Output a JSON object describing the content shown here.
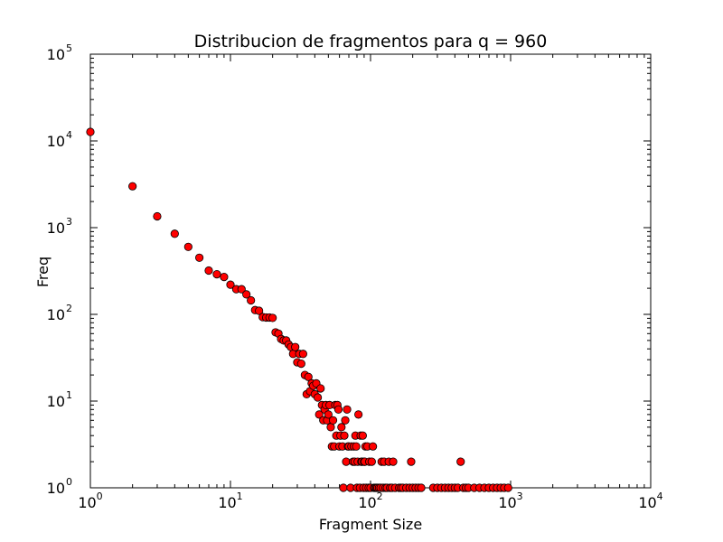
{
  "chart_data": {
    "type": "scatter",
    "title": "Distribucion de fragmentos para q = 960",
    "xlabel": "Fragment Size",
    "ylabel": "Freq",
    "xscale": "log",
    "yscale": "log",
    "xlim": [
      1,
      10000
    ],
    "ylim": [
      1,
      100000
    ],
    "xticks": [
      {
        "base": "10",
        "exp": "0",
        "value": 1
      },
      {
        "base": "10",
        "exp": "1",
        "value": 10
      },
      {
        "base": "10",
        "exp": "2",
        "value": 100
      },
      {
        "base": "10",
        "exp": "3",
        "value": 1000
      },
      {
        "base": "10",
        "exp": "4",
        "value": 10000
      }
    ],
    "yticks": [
      {
        "base": "10",
        "exp": "0",
        "value": 1
      },
      {
        "base": "10",
        "exp": "1",
        "value": 10
      },
      {
        "base": "10",
        "exp": "2",
        "value": 100
      },
      {
        "base": "10",
        "exp": "3",
        "value": 1000
      },
      {
        "base": "10",
        "exp": "4",
        "value": 10000
      },
      {
        "base": "10",
        "exp": "5",
        "value": 100000
      }
    ],
    "marker_color": "#ff0000",
    "marker_edge": "#000000",
    "points": [
      [
        1,
        12700
      ],
      [
        2,
        3000
      ],
      [
        3,
        1350
      ],
      [
        4,
        850
      ],
      [
        5,
        600
      ],
      [
        6,
        450
      ],
      [
        7,
        320
      ],
      [
        8,
        290
      ],
      [
        9,
        270
      ],
      [
        10,
        220
      ],
      [
        11,
        195
      ],
      [
        12,
        195
      ],
      [
        13,
        170
      ],
      [
        14,
        145
      ],
      [
        15,
        112
      ],
      [
        16,
        110
      ],
      [
        17,
        93
      ],
      [
        18,
        92
      ],
      [
        19,
        92
      ],
      [
        20,
        91
      ],
      [
        21,
        62
      ],
      [
        22,
        60
      ],
      [
        23,
        52
      ],
      [
        24,
        50
      ],
      [
        25,
        50
      ],
      [
        26,
        45
      ],
      [
        27,
        42
      ],
      [
        28,
        35
      ],
      [
        29,
        42
      ],
      [
        30,
        28
      ],
      [
        31,
        35
      ],
      [
        32,
        27
      ],
      [
        33,
        35
      ],
      [
        34,
        20
      ],
      [
        35,
        12
      ],
      [
        36,
        19
      ],
      [
        37,
        13
      ],
      [
        38,
        16
      ],
      [
        39,
        15
      ],
      [
        40,
        12
      ],
      [
        41,
        16
      ],
      [
        42,
        11
      ],
      [
        43,
        7
      ],
      [
        44,
        14
      ],
      [
        45,
        9
      ],
      [
        46,
        6
      ],
      [
        47,
        8
      ],
      [
        48,
        9
      ],
      [
        49,
        6
      ],
      [
        50,
        7
      ],
      [
        51,
        9
      ],
      [
        52,
        5
      ],
      [
        53,
        3
      ],
      [
        54,
        6
      ],
      [
        55,
        3
      ],
      [
        56,
        9
      ],
      [
        57,
        4
      ],
      [
        58,
        9
      ],
      [
        59,
        8
      ],
      [
        60,
        3
      ],
      [
        61,
        4
      ],
      [
        62,
        5
      ],
      [
        63,
        3
      ],
      [
        64,
        1
      ],
      [
        65,
        4
      ],
      [
        66,
        6
      ],
      [
        67,
        2
      ],
      [
        68,
        8
      ],
      [
        69,
        3
      ],
      [
        70,
        3
      ],
      [
        72,
        1
      ],
      [
        73,
        3
      ],
      [
        75,
        2
      ],
      [
        76,
        3
      ],
      [
        77,
        2
      ],
      [
        78,
        4
      ],
      [
        79,
        3
      ],
      [
        80,
        1
      ],
      [
        81,
        2
      ],
      [
        82,
        7
      ],
      [
        84,
        1
      ],
      [
        85,
        4
      ],
      [
        86,
        2
      ],
      [
        87,
        2
      ],
      [
        88,
        4
      ],
      [
        89,
        1
      ],
      [
        90,
        2
      ],
      [
        91,
        2
      ],
      [
        92,
        3
      ],
      [
        93,
        1
      ],
      [
        95,
        3
      ],
      [
        97,
        1
      ],
      [
        98,
        2
      ],
      [
        100,
        1
      ],
      [
        102,
        2
      ],
      [
        104,
        3
      ],
      [
        106,
        1
      ],
      [
        108,
        1
      ],
      [
        110,
        1
      ],
      [
        112,
        1
      ],
      [
        115,
        1
      ],
      [
        118,
        1
      ],
      [
        120,
        2
      ],
      [
        123,
        1
      ],
      [
        125,
        2
      ],
      [
        128,
        1
      ],
      [
        131,
        1
      ],
      [
        135,
        2
      ],
      [
        138,
        1
      ],
      [
        142,
        1
      ],
      [
        145,
        2
      ],
      [
        150,
        1
      ],
      [
        160,
        1
      ],
      [
        165,
        1
      ],
      [
        170,
        1
      ],
      [
        180,
        1
      ],
      [
        190,
        1
      ],
      [
        195,
        2
      ],
      [
        200,
        1
      ],
      [
        210,
        1
      ],
      [
        220,
        1
      ],
      [
        230,
        1
      ],
      [
        280,
        1
      ],
      [
        300,
        1
      ],
      [
        320,
        1
      ],
      [
        340,
        1
      ],
      [
        360,
        1
      ],
      [
        380,
        1
      ],
      [
        400,
        1
      ],
      [
        420,
        1
      ],
      [
        440,
        2
      ],
      [
        460,
        1
      ],
      [
        480,
        1
      ],
      [
        500,
        1
      ],
      [
        550,
        1
      ],
      [
        600,
        1
      ],
      [
        650,
        1
      ],
      [
        700,
        1
      ],
      [
        750,
        1
      ],
      [
        800,
        1
      ],
      [
        850,
        1
      ],
      [
        900,
        1
      ],
      [
        960,
        1
      ]
    ]
  }
}
